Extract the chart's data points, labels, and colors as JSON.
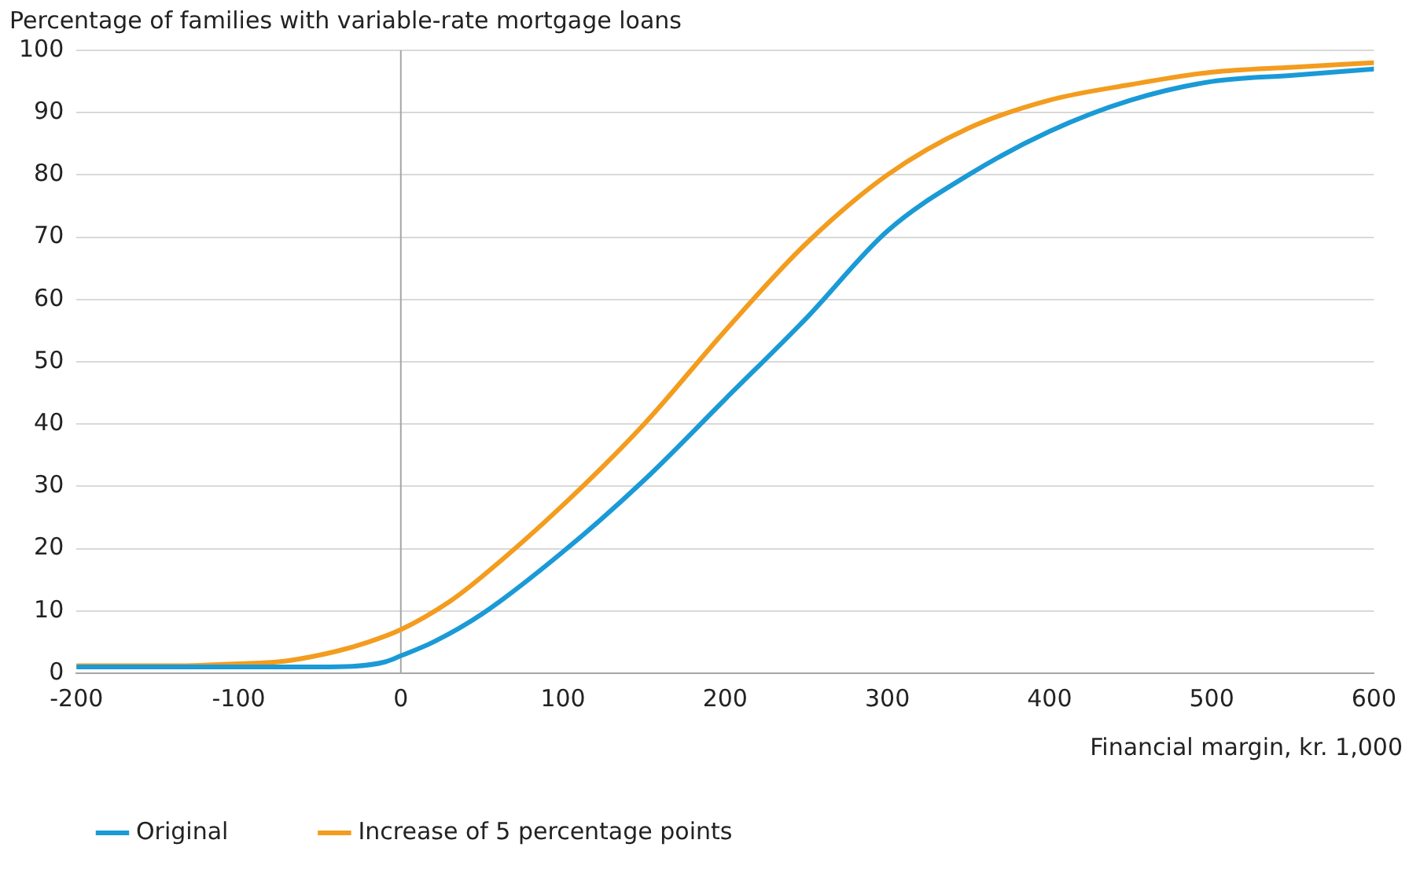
{
  "chart_data": {
    "type": "line",
    "ylabel": "Percentage of families with variable-rate mortgage loans",
    "xlabel": "Financial margin, kr. 1,000",
    "xlim": [
      -200,
      600
    ],
    "xticks": [
      -200,
      -100,
      0,
      100,
      200,
      300,
      400,
      500,
      600
    ],
    "ylim": [
      0,
      100
    ],
    "yticks": [
      0,
      10,
      20,
      30,
      40,
      50,
      60,
      70,
      80,
      90,
      100
    ],
    "grid": "y",
    "legend": "bottom left",
    "marker": "none",
    "line_style": "solid",
    "ref_lines": [
      {
        "axis": "x",
        "value": 0,
        "label": null,
        "color": "#a6a6a6"
      }
    ],
    "series": [
      {
        "name": "Original",
        "color": "#1a9ad6",
        "x": [
          -200,
          -100,
          -50,
          -30,
          -10,
          0,
          20,
          50,
          100,
          150,
          200,
          250,
          300,
          350,
          400,
          450,
          500,
          550,
          600
        ],
        "values": [
          1,
          1,
          1,
          1.1,
          1.8,
          2.8,
          5,
          9.5,
          19.5,
          31,
          44,
          57,
          71,
          80,
          87,
          92,
          95,
          96,
          97
        ]
      },
      {
        "name": "Increase of 5 percentage points",
        "color": "#f39c1e",
        "x": [
          -200,
          -140,
          -100,
          -70,
          -40,
          -20,
          0,
          30,
          50,
          100,
          150,
          200,
          250,
          300,
          350,
          400,
          450,
          500,
          550,
          600
        ],
        "values": [
          1.2,
          1.2,
          1.5,
          2,
          3.5,
          5,
          7,
          11.5,
          15.5,
          27,
          40,
          55,
          69,
          80,
          87.5,
          92,
          94.5,
          96.5,
          97.3,
          98
        ]
      }
    ]
  }
}
